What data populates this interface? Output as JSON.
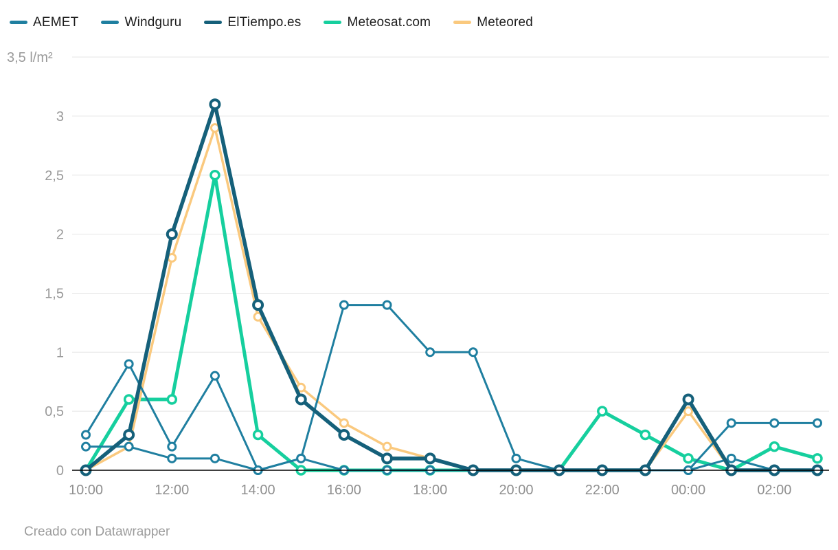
{
  "legend": {
    "items": [
      {
        "id": "aemet",
        "label": "AEMET",
        "color": "#1f7fa0"
      },
      {
        "id": "windguru",
        "label": "Windguru",
        "color": "#1f7fa0"
      },
      {
        "id": "eltiempo",
        "label": "ElTiempo.es",
        "color": "#15607a"
      },
      {
        "id": "meteosat",
        "label": "Meteosat.com",
        "color": "#16cf9e"
      },
      {
        "id": "meteored",
        "label": "Meteored",
        "color": "#fac97e"
      }
    ]
  },
  "y_axis": {
    "unit_label": "3,5 l/m²",
    "unit_value": 3.5,
    "ticks": [
      {
        "value": 0,
        "label": "0"
      },
      {
        "value": 0.5,
        "label": "0,5"
      },
      {
        "value": 1,
        "label": "1"
      },
      {
        "value": 1.5,
        "label": "1,5"
      },
      {
        "value": 2,
        "label": "2"
      },
      {
        "value": 2.5,
        "label": "2,5"
      },
      {
        "value": 3,
        "label": "3"
      }
    ]
  },
  "x_axis": {
    "tick_labels": [
      "10:00",
      "12:00",
      "14:00",
      "16:00",
      "18:00",
      "20:00",
      "22:00",
      "00:00",
      "02:00"
    ]
  },
  "footer": {
    "credit": "Creado con Datawrapper"
  },
  "chart_data": {
    "type": "line",
    "title": "",
    "ylabel": "l/m²",
    "ylim": [
      0,
      3.5
    ],
    "grid": true,
    "legend_position": "top-left",
    "x": [
      "10:00",
      "11:00",
      "12:00",
      "13:00",
      "14:00",
      "15:00",
      "16:00",
      "17:00",
      "18:00",
      "19:00",
      "20:00",
      "21:00",
      "22:00",
      "23:00",
      "00:00",
      "01:00",
      "02:00",
      "03:00"
    ],
    "series": [
      {
        "name": "AEMET",
        "color": "#1f7fa0",
        "line_width": 3,
        "marker_radius": 5.5,
        "marker_stroke": 3,
        "values": [
          0.2,
          0.2,
          0.1,
          0.1,
          0,
          0.1,
          0,
          0,
          0,
          0,
          0,
          0,
          0,
          0,
          0,
          0.1,
          0,
          0
        ]
      },
      {
        "name": "Windguru",
        "color": "#1f7fa0",
        "line_width": 3,
        "marker_radius": 5.5,
        "marker_stroke": 3,
        "values": [
          0.3,
          0.9,
          0.2,
          0.8,
          0,
          0.1,
          1.4,
          1.4,
          1,
          1,
          0.1,
          0,
          0,
          0,
          0,
          0.4,
          0.4,
          0.4
        ]
      },
      {
        "name": "ElTiempo.es",
        "color": "#15607a",
        "line_width": 5.5,
        "marker_radius": 6.5,
        "marker_stroke": 4,
        "values": [
          0,
          0.3,
          2,
          3.1,
          1.4,
          0.6,
          0.3,
          0.1,
          0.1,
          0,
          0,
          0,
          0,
          0,
          0.6,
          0,
          0,
          0
        ]
      },
      {
        "name": "Meteosat.com",
        "color": "#16cf9e",
        "line_width": 5,
        "marker_radius": 6,
        "marker_stroke": 3.5,
        "values": [
          0,
          0.6,
          0.6,
          2.5,
          0.3,
          0,
          0,
          0,
          0,
          0,
          0,
          0,
          0.5,
          0.3,
          0.1,
          0,
          0.2,
          0.1
        ]
      },
      {
        "name": "Meteored",
        "color": "#fac97e",
        "line_width": 3.5,
        "marker_radius": 5.5,
        "marker_stroke": 3,
        "values": [
          0,
          0.2,
          1.8,
          2.9,
          1.3,
          0.7,
          0.4,
          0.2,
          0.1,
          0,
          0,
          0,
          0,
          0,
          0.5,
          0,
          0,
          0
        ]
      }
    ],
    "draw_order": [
      "Meteosat.com",
      "Meteored",
      "AEMET",
      "Windguru",
      "ElTiempo.es"
    ]
  }
}
